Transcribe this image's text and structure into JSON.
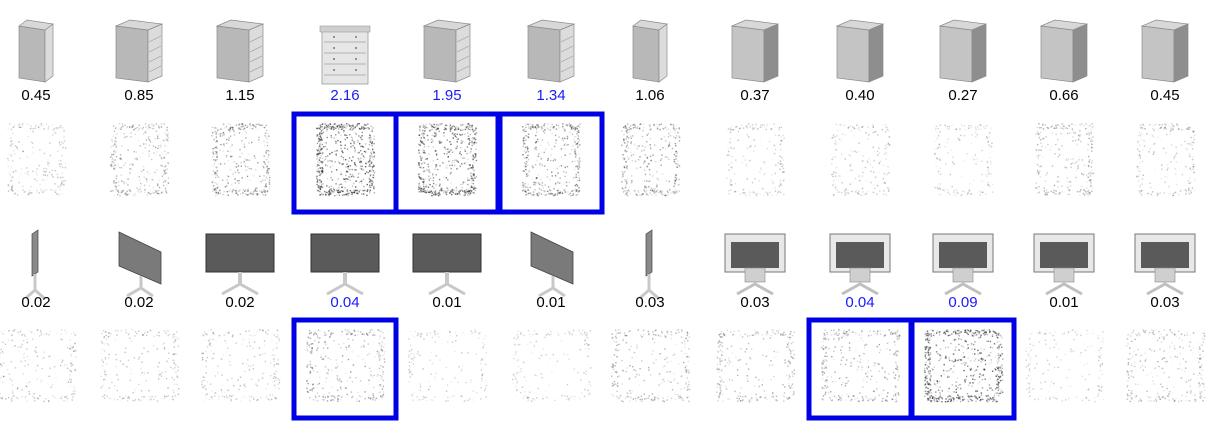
{
  "colors": {
    "highlight": "#0000e6",
    "score_default": "#000000",
    "score_highlight": "#1a1aff",
    "render_light": "#d9d9d9",
    "render_dark": "#5a5a5a",
    "saliency_dot": "#222222"
  },
  "rows": [
    {
      "category": "dresser",
      "views": [
        {
          "score": "0.45",
          "highlight": false,
          "shape": "cabinet-side"
        },
        {
          "score": "0.85",
          "highlight": false,
          "shape": "dresser-angle"
        },
        {
          "score": "1.15",
          "highlight": false,
          "shape": "dresser-angle"
        },
        {
          "score": "2.16",
          "highlight": true,
          "shape": "dresser-front"
        },
        {
          "score": "1.95",
          "highlight": true,
          "shape": "dresser-angle"
        },
        {
          "score": "1.34",
          "highlight": true,
          "shape": "dresser-angle"
        },
        {
          "score": "1.06",
          "highlight": false,
          "shape": "cabinet-side"
        },
        {
          "score": "0.37",
          "highlight": false,
          "shape": "cabinet-back"
        },
        {
          "score": "0.40",
          "highlight": false,
          "shape": "cabinet-back"
        },
        {
          "score": "0.27",
          "highlight": false,
          "shape": "cabinet-back"
        },
        {
          "score": "0.66",
          "highlight": false,
          "shape": "cabinet-back"
        },
        {
          "score": "0.45",
          "highlight": false,
          "shape": "cabinet-back"
        }
      ]
    },
    {
      "category": "monitor",
      "views": [
        {
          "score": "0.02",
          "highlight": false,
          "shape": "monitor-side"
        },
        {
          "score": "0.02",
          "highlight": false,
          "shape": "monitor-angle"
        },
        {
          "score": "0.02",
          "highlight": false,
          "shape": "monitor-front"
        },
        {
          "score": "0.04",
          "highlight": true,
          "shape": "monitor-front"
        },
        {
          "score": "0.01",
          "highlight": false,
          "shape": "monitor-front"
        },
        {
          "score": "0.01",
          "highlight": false,
          "shape": "monitor-angle"
        },
        {
          "score": "0.03",
          "highlight": false,
          "shape": "monitor-side"
        },
        {
          "score": "0.03",
          "highlight": false,
          "shape": "monitor-back"
        },
        {
          "score": "0.04",
          "highlight": true,
          "shape": "monitor-back"
        },
        {
          "score": "0.09",
          "highlight": true,
          "shape": "monitor-back"
        },
        {
          "score": "0.01",
          "highlight": false,
          "shape": "monitor-back"
        },
        {
          "score": "0.03",
          "highlight": false,
          "shape": "monitor-back"
        }
      ]
    }
  ]
}
